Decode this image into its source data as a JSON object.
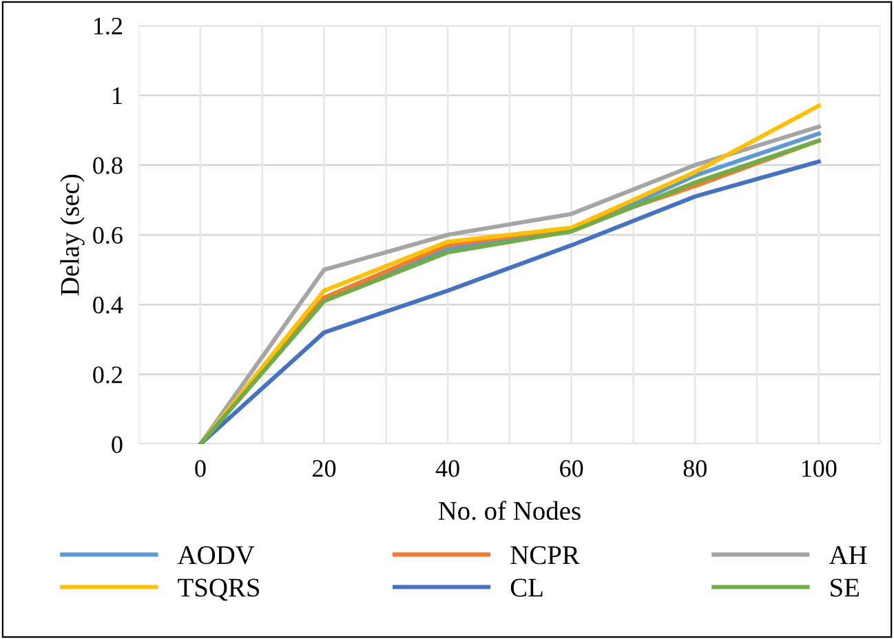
{
  "chart_data": {
    "type": "line",
    "xlabel": "No. of Nodes",
    "ylabel": "Delay (sec)",
    "categories": [
      "0",
      "20",
      "40",
      "60",
      "80",
      "100"
    ],
    "series": [
      {
        "name": "AODV",
        "color": "#5b9bd5",
        "values": [
          0,
          0.41,
          0.56,
          0.61,
          0.77,
          0.89
        ]
      },
      {
        "name": "NCPR",
        "color": "#ed7d31",
        "values": [
          0,
          0.42,
          0.57,
          0.62,
          0.74,
          0.87
        ]
      },
      {
        "name": "AH",
        "color": "#a5a5a5",
        "values": [
          0,
          0.5,
          0.6,
          0.66,
          0.8,
          0.91
        ]
      },
      {
        "name": "TSQRS",
        "color": "#ffc000",
        "values": [
          0,
          0.44,
          0.58,
          0.62,
          0.78,
          0.97
        ]
      },
      {
        "name": "CL",
        "color": "#4472c4",
        "values": [
          0,
          0.32,
          0.44,
          0.57,
          0.71,
          0.81
        ]
      },
      {
        "name": "SE",
        "color": "#70ad47",
        "values": [
          0,
          0.41,
          0.55,
          0.61,
          0.75,
          0.87
        ]
      }
    ],
    "ylim": [
      0,
      1.2
    ],
    "yticks": [
      0,
      0.2,
      0.4,
      0.6,
      0.8,
      1,
      1.2
    ],
    "grid": true,
    "legend": "bottom",
    "marker": "none",
    "line_style": "solid"
  }
}
